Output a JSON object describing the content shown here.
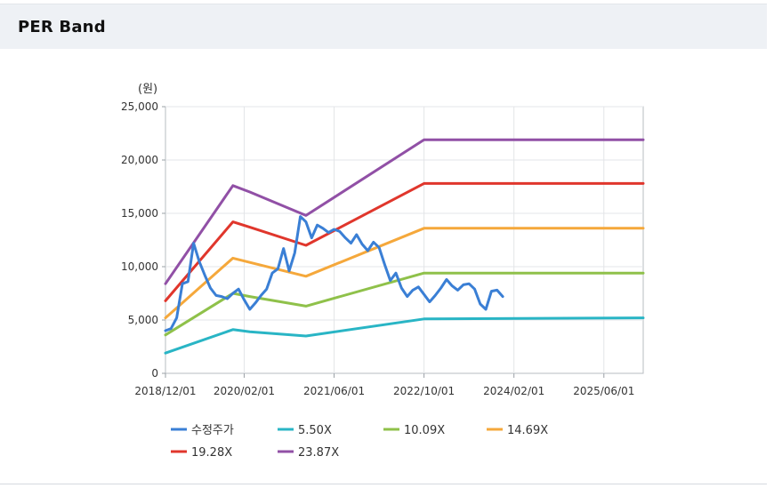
{
  "header": {
    "title": "PER Band"
  },
  "chart_data": {
    "type": "line",
    "unit_label": "(원)",
    "y_ticks": [
      "25,000",
      "20,000",
      "15,000",
      "10,000",
      "5,000",
      "0"
    ],
    "y_tick_values": [
      25000,
      20000,
      15000,
      10000,
      5000,
      0
    ],
    "x_ticks": [
      "2018/12/01",
      "2020/02/01",
      "2021/06/01",
      "2022/10/01",
      "2024/02/01",
      "2025/06/01"
    ],
    "ylim": [
      0,
      25000
    ],
    "xlim": [
      "2018/12/01",
      "2026/01/01"
    ],
    "grid": true,
    "legend_position": "bottom",
    "series": [
      {
        "name": "수정주가",
        "color": "#3a7fd5",
        "points": [
          [
            "2018/12/01",
            4000
          ],
          [
            "2019/01/01",
            4200
          ],
          [
            "2019/02/01",
            5200
          ],
          [
            "2019/03/01",
            8400
          ],
          [
            "2019/04/01",
            8600
          ],
          [
            "2019/05/01",
            12200
          ],
          [
            "2019/06/01",
            10500
          ],
          [
            "2019/07/01",
            9200
          ],
          [
            "2019/08/01",
            8000
          ],
          [
            "2019/09/01",
            7300
          ],
          [
            "2019/10/01",
            7200
          ],
          [
            "2019/11/01",
            7000
          ],
          [
            "2019/12/01",
            7500
          ],
          [
            "2020/01/01",
            7900
          ],
          [
            "2020/02/01",
            6900
          ],
          [
            "2020/03/01",
            6000
          ],
          [
            "2020/04/01",
            6600
          ],
          [
            "2020/05/01",
            7300
          ],
          [
            "2020/06/01",
            7900
          ],
          [
            "2020/07/01",
            9400
          ],
          [
            "2020/08/01",
            9800
          ],
          [
            "2020/09/01",
            11700
          ],
          [
            "2020/10/01",
            9600
          ],
          [
            "2020/11/01",
            11300
          ],
          [
            "2020/12/01",
            14700
          ],
          [
            "2021/01/01",
            14200
          ],
          [
            "2021/02/01",
            12700
          ],
          [
            "2021/03/01",
            13900
          ],
          [
            "2021/04/01",
            13600
          ],
          [
            "2021/05/01",
            13200
          ],
          [
            "2021/06/01",
            13500
          ],
          [
            "2021/07/01",
            13300
          ],
          [
            "2021/08/01",
            12700
          ],
          [
            "2021/09/01",
            12200
          ],
          [
            "2021/10/01",
            13000
          ],
          [
            "2021/11/01",
            12100
          ],
          [
            "2021/12/01",
            11500
          ],
          [
            "2022/01/01",
            12300
          ],
          [
            "2022/02/01",
            11800
          ],
          [
            "2022/03/01",
            10200
          ],
          [
            "2022/04/01",
            8700
          ],
          [
            "2022/05/01",
            9400
          ],
          [
            "2022/06/01",
            8000
          ],
          [
            "2022/07/01",
            7200
          ],
          [
            "2022/08/01",
            7800
          ],
          [
            "2022/09/01",
            8100
          ],
          [
            "2022/10/01",
            7400
          ],
          [
            "2022/11/01",
            6700
          ],
          [
            "2022/12/01",
            7300
          ],
          [
            "2023/01/01",
            8000
          ],
          [
            "2023/02/01",
            8800
          ],
          [
            "2023/03/01",
            8200
          ],
          [
            "2023/04/01",
            7800
          ],
          [
            "2023/05/01",
            8300
          ],
          [
            "2023/06/01",
            8400
          ],
          [
            "2023/07/01",
            7900
          ],
          [
            "2023/08/01",
            6500
          ],
          [
            "2023/09/01",
            6000
          ],
          [
            "2023/10/01",
            7700
          ],
          [
            "2023/11/01",
            7800
          ],
          [
            "2023/12/01",
            7200
          ]
        ]
      },
      {
        "name": "5.50X",
        "color": "#29b5c5",
        "points": [
          [
            "2018/12/01",
            1900
          ],
          [
            "2019/12/01",
            4100
          ],
          [
            "2020/03/01",
            3900
          ],
          [
            "2021/01/01",
            3500
          ],
          [
            "2022/10/01",
            5100
          ],
          [
            "2026/01/01",
            5200
          ]
        ]
      },
      {
        "name": "10.09X",
        "color": "#8fc14a",
        "points": [
          [
            "2018/12/01",
            3600
          ],
          [
            "2019/12/01",
            7500
          ],
          [
            "2020/03/01",
            7200
          ],
          [
            "2021/01/01",
            6300
          ],
          [
            "2022/10/01",
            9400
          ],
          [
            "2026/01/01",
            9400
          ]
        ]
      },
      {
        "name": "14.69X",
        "color": "#f5a83b",
        "points": [
          [
            "2018/12/01",
            5200
          ],
          [
            "2019/12/01",
            10800
          ],
          [
            "2020/03/01",
            10400
          ],
          [
            "2021/01/01",
            9100
          ],
          [
            "2022/10/01",
            13600
          ],
          [
            "2026/01/01",
            13600
          ]
        ]
      },
      {
        "name": "19.28X",
        "color": "#e0362c",
        "points": [
          [
            "2018/12/01",
            6800
          ],
          [
            "2019/12/01",
            14200
          ],
          [
            "2020/03/01",
            13700
          ],
          [
            "2021/01/01",
            12000
          ],
          [
            "2022/10/01",
            17800
          ],
          [
            "2026/01/01",
            17800
          ]
        ]
      },
      {
        "name": "23.87X",
        "color": "#9150a6",
        "points": [
          [
            "2018/12/01",
            8400
          ],
          [
            "2019/12/01",
            17600
          ],
          [
            "2020/03/01",
            17000
          ],
          [
            "2021/01/01",
            14800
          ],
          [
            "2022/10/01",
            21900
          ],
          [
            "2026/01/01",
            21900
          ]
        ]
      }
    ]
  }
}
